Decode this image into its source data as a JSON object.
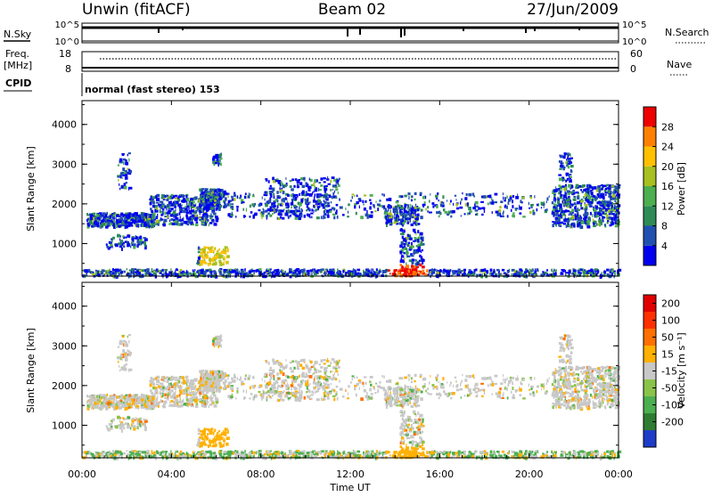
{
  "header": {
    "station": "Unwin (fitACF)",
    "beam": "Beam 02",
    "date": "27/Jun/2009"
  },
  "nsky_panel": {
    "left_label": "N.Sky",
    "left_ticks": [
      "10^5",
      "10^0"
    ],
    "right_ticks": [
      "10^5",
      "10^0"
    ],
    "right_label": "N.Search"
  },
  "freq_panel": {
    "left_label_1": "Freq.",
    "left_label_2": "[MHz]",
    "left_ticks": [
      "18",
      "8"
    ],
    "right_ticks": [
      "60",
      "0"
    ],
    "right_label": "Nave"
  },
  "cpid": {
    "label": "CPID",
    "value": "normal (fast stereo) 153"
  },
  "chart_data": [
    {
      "type": "heatmap",
      "name": "power",
      "ylabel": "Slant Range [km]",
      "yticks": [
        "1000",
        "2000",
        "3000",
        "4000"
      ],
      "ylim": [
        180,
        4600
      ],
      "colorbar": {
        "label": "Power [dB]",
        "ticks": [
          "4",
          "8",
          "12",
          "16",
          "20",
          "24",
          "28"
        ],
        "colors": [
          "#0000ee",
          "#2050b0",
          "#2e8b57",
          "#4caf50",
          "#a8c020",
          "#ffc000",
          "#ff8000",
          "#ee0000"
        ]
      }
    },
    {
      "type": "heatmap",
      "name": "velocity",
      "ylabel": "Slant Range [km]",
      "yticks": [
        "1000",
        "2000",
        "3000",
        "4000"
      ],
      "ylim": [
        180,
        4600
      ],
      "colorbar": {
        "label": "Velocity [m s⁻¹]",
        "ticks": [
          "200",
          "100",
          "50",
          "15",
          "-15",
          "-50",
          "-100",
          "-200"
        ],
        "colors": [
          "#1e3cc8",
          "#2e7d32",
          "#4caf50",
          "#8bc34a",
          "#c8c8c8",
          "#ffb000",
          "#ff7000",
          "#ff3000",
          "#e00000"
        ]
      }
    }
  ],
  "x_axis": {
    "ticks": [
      "00:00",
      "04:00",
      "08:00",
      "12:00",
      "16:00",
      "20:00",
      "00:00"
    ],
    "label": "Time UT"
  }
}
